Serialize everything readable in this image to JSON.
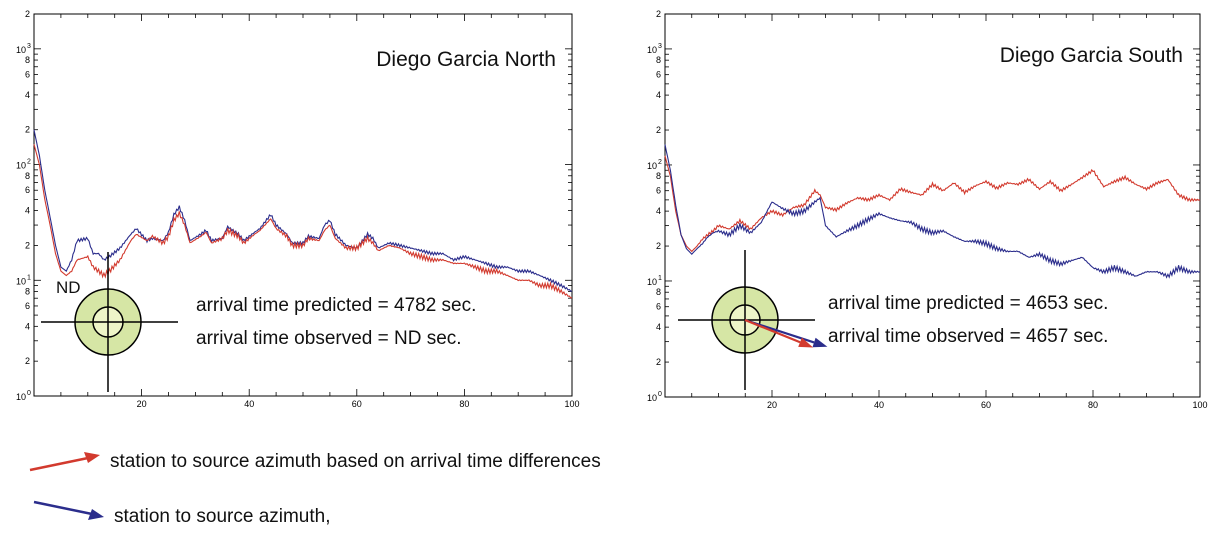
{
  "chart_data": [
    {
      "type": "line",
      "title": "Diego Garcia North",
      "x_ticks": [
        "20",
        "40",
        "60",
        "80",
        "100"
      ],
      "xlim": [
        0,
        100
      ],
      "ylim": [
        1,
        2000
      ],
      "y_scale": "log",
      "y_decade_labels": [
        {
          "base": "10",
          "exp": "0"
        },
        {
          "base": "10",
          "exp": "1"
        },
        {
          "base": "10",
          "exp": "2"
        },
        {
          "base": "10",
          "exp": "3"
        }
      ],
      "y_minor_labels": [
        "2",
        "4",
        "6",
        "8"
      ],
      "station_marker_label": "ND",
      "station_marker_arrows": [],
      "annotation_predicted": "arrival time predicted = 4782 sec.",
      "annotation_observed": "arrival time observed = ND sec.",
      "series": [
        {
          "color": "#2b2d8c",
          "x": [
            0,
            1,
            2,
            3,
            4,
            5,
            6,
            7,
            8,
            10,
            11,
            12,
            13,
            14,
            16,
            18,
            19,
            21,
            22,
            24,
            25,
            26,
            27,
            28,
            29,
            31,
            32,
            33,
            35,
            36,
            38,
            39,
            41,
            42,
            44,
            45,
            47,
            48,
            50,
            51,
            53,
            54,
            55,
            56,
            58,
            60,
            62,
            63,
            64,
            66,
            68,
            70,
            72,
            74,
            76,
            78,
            80,
            82,
            84,
            86,
            88,
            90,
            92,
            94,
            96,
            98,
            100
          ],
          "y": [
            200,
            120,
            60,
            35,
            20,
            13,
            12,
            15,
            22,
            23,
            17,
            17,
            15,
            16,
            19,
            25,
            28,
            22,
            23,
            22,
            26,
            37,
            43,
            33,
            22,
            25,
            27,
            22,
            23,
            29,
            25,
            22,
            26,
            28,
            37,
            30,
            25,
            21,
            21,
            24,
            23,
            30,
            33,
            25,
            20,
            19,
            25,
            23,
            19,
            21,
            20,
            19,
            18,
            17,
            17,
            15,
            16,
            15,
            14,
            13,
            13,
            12,
            12,
            11,
            10,
            9,
            8
          ]
        },
        {
          "color": "#d23a2e",
          "x": [
            0,
            1,
            2,
            3,
            4,
            5,
            6,
            7,
            8,
            10,
            11,
            12,
            13,
            14,
            16,
            18,
            19,
            21,
            22,
            24,
            25,
            26,
            27,
            28,
            29,
            31,
            32,
            33,
            35,
            36,
            38,
            39,
            41,
            42,
            44,
            45,
            47,
            48,
            50,
            51,
            53,
            54,
            55,
            56,
            58,
            60,
            62,
            63,
            64,
            66,
            68,
            70,
            72,
            74,
            76,
            78,
            80,
            82,
            84,
            86,
            88,
            90,
            92,
            94,
            96,
            98,
            100
          ],
          "y": [
            150,
            100,
            50,
            30,
            17,
            12,
            11,
            12,
            15,
            16,
            13,
            12,
            11,
            12,
            15,
            22,
            25,
            22,
            24,
            21,
            24,
            33,
            38,
            30,
            21,
            24,
            26,
            21,
            23,
            27,
            24,
            21,
            25,
            27,
            34,
            28,
            24,
            20,
            20,
            23,
            22,
            27,
            30,
            23,
            19,
            19,
            23,
            21,
            18,
            20,
            19,
            17,
            16,
            15,
            15,
            14,
            14,
            13,
            12,
            12,
            11,
            10,
            10,
            9,
            9,
            8,
            7
          ]
        }
      ]
    },
    {
      "type": "line",
      "title": "Diego Garcia South",
      "x_ticks": [
        "20",
        "40",
        "60",
        "80",
        "100"
      ],
      "xlim": [
        0,
        100
      ],
      "ylim": [
        1,
        2000
      ],
      "y_scale": "log",
      "y_decade_labels": [
        {
          "base": "10",
          "exp": "0"
        },
        {
          "base": "10",
          "exp": "1"
        },
        {
          "base": "10",
          "exp": "2"
        },
        {
          "base": "10",
          "exp": "3"
        }
      ],
      "y_minor_labels": [
        "2",
        "4",
        "6",
        "8"
      ],
      "station_marker_label": "",
      "station_marker_arrows": [
        {
          "color": "#2b2d8c",
          "angle_deg": 18,
          "length": 0.22
        },
        {
          "color": "#d23a2e",
          "angle_deg": 22,
          "length": 0.18
        }
      ],
      "annotation_predicted": "arrival time predicted = 4653 sec.",
      "annotation_observed": "arrival time observed = 4657 sec.",
      "series": [
        {
          "color": "#d23a2e",
          "x": [
            0,
            1,
            2,
            3,
            4,
            5,
            6,
            7,
            8,
            9,
            10,
            12,
            14,
            16,
            18,
            20,
            22,
            24,
            26,
            28,
            29,
            30,
            32,
            34,
            36,
            38,
            40,
            42,
            44,
            46,
            48,
            50,
            52,
            54,
            56,
            58,
            60,
            62,
            64,
            66,
            68,
            70,
            72,
            74,
            76,
            78,
            80,
            82,
            84,
            86,
            88,
            90,
            92,
            94,
            96,
            98,
            100
          ],
          "y": [
            120,
            80,
            40,
            25,
            20,
            18,
            20,
            23,
            25,
            27,
            30,
            28,
            33,
            28,
            35,
            40,
            37,
            43,
            45,
            60,
            55,
            43,
            41,
            47,
            52,
            50,
            55,
            50,
            62,
            58,
            55,
            68,
            60,
            70,
            58,
            66,
            72,
            63,
            70,
            68,
            75,
            62,
            72,
            60,
            68,
            78,
            90,
            65,
            72,
            78,
            68,
            62,
            70,
            75,
            55,
            50,
            50
          ]
        },
        {
          "color": "#2b2d8c",
          "x": [
            0,
            1,
            2,
            3,
            4,
            5,
            6,
            7,
            8,
            9,
            10,
            12,
            14,
            16,
            18,
            20,
            22,
            24,
            26,
            28,
            29,
            30,
            32,
            34,
            36,
            38,
            40,
            42,
            44,
            46,
            48,
            50,
            52,
            54,
            56,
            58,
            60,
            62,
            64,
            66,
            68,
            70,
            72,
            74,
            76,
            78,
            80,
            82,
            84,
            86,
            88,
            90,
            92,
            94,
            96,
            98,
            100
          ],
          "y": [
            150,
            90,
            45,
            25,
            19,
            17,
            19,
            21,
            24,
            26,
            27,
            25,
            30,
            26,
            32,
            48,
            42,
            38,
            40,
            48,
            52,
            30,
            24,
            27,
            30,
            34,
            38,
            35,
            33,
            32,
            28,
            26,
            27,
            24,
            22,
            22,
            21,
            19,
            18,
            18,
            16,
            17,
            15,
            14,
            15,
            16,
            13,
            12,
            13,
            12,
            11,
            12,
            12,
            11,
            13,
            12,
            12
          ]
        }
      ]
    }
  ],
  "legend": {
    "red_label": "station to source azimuth based on arrival time differences",
    "red_color": "#d23a2e",
    "blue_label": "station to source azimuth,",
    "blue_color": "#2b2d8c"
  }
}
